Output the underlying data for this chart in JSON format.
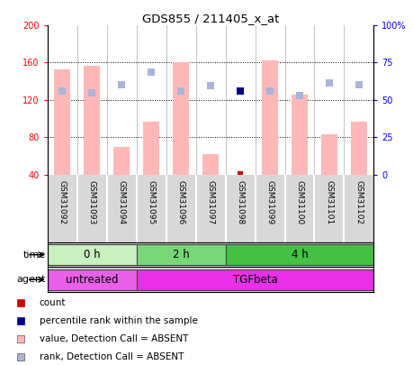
{
  "title": "GDS855 / 211405_x_at",
  "samples": [
    "GSM31092",
    "GSM31093",
    "GSM31094",
    "GSM31095",
    "GSM31096",
    "GSM31097",
    "GSM31098",
    "GSM31099",
    "GSM31100",
    "GSM31101",
    "GSM31102"
  ],
  "bar_values": [
    153,
    157,
    70,
    97,
    160,
    62,
    40,
    162,
    126,
    83,
    97
  ],
  "bar_bottom": 40,
  "rank_values": [
    130,
    128,
    136,
    150,
    130,
    135,
    null,
    130,
    125,
    138,
    136
  ],
  "rank_color_absent": "#aab4d8",
  "rank_present": {
    "idx": 6,
    "value": 130
  },
  "count_present": {
    "idx": 6,
    "value": 41
  },
  "ylim_left": [
    40,
    200
  ],
  "ylim_right": [
    0,
    100
  ],
  "yticks_left": [
    40,
    80,
    120,
    160,
    200
  ],
  "yticks_right": [
    0,
    25,
    50,
    75,
    100
  ],
  "bar_color": "#ffb8b8",
  "bar_width": 0.55,
  "time_groups": [
    {
      "label": "0 h",
      "start": 0,
      "end": 3,
      "color": "#c8f0c0"
    },
    {
      "label": "2 h",
      "start": 3,
      "end": 6,
      "color": "#78d878"
    },
    {
      "label": "4 h",
      "start": 6,
      "end": 11,
      "color": "#44c044"
    }
  ],
  "agent_groups": [
    {
      "label": "untreated",
      "start": 0,
      "end": 3,
      "color": "#e860e8"
    },
    {
      "label": "TGFbeta",
      "start": 3,
      "end": 11,
      "color": "#e830e8"
    }
  ],
  "legend_items": [
    {
      "label": "count",
      "color": "#cc0000"
    },
    {
      "label": "percentile rank within the sample",
      "color": "#00008b"
    },
    {
      "label": "value, Detection Call = ABSENT",
      "color": "#ffb8b8"
    },
    {
      "label": "rank, Detection Call = ABSENT",
      "color": "#aab4d8"
    }
  ]
}
